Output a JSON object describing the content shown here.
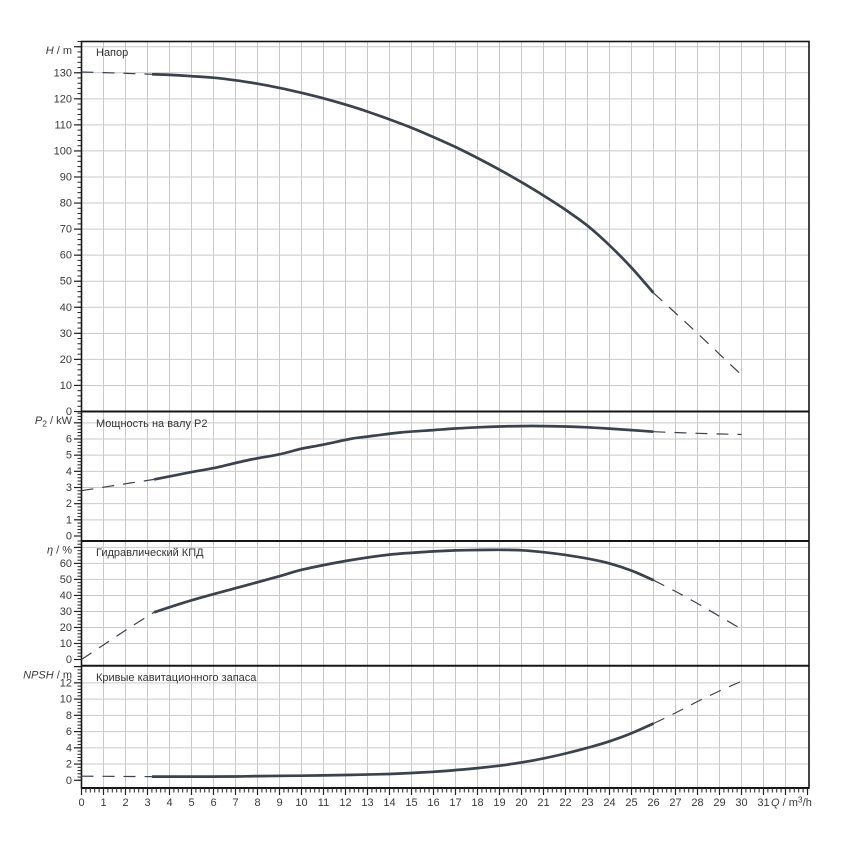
{
  "colors": {
    "curve": "#3a424d",
    "grid": "#c9c9c9",
    "frame": "#161616",
    "text": "#3a3a3a"
  },
  "x_axis": {
    "label": "Q / m³/h",
    "label_parts": [
      {
        "t": "Q",
        "i": 1
      },
      {
        "t": " / m"
      },
      {
        "t": "3",
        "sup": 1
      },
      {
        "t": "/h"
      }
    ],
    "tick_labels": [
      0,
      1,
      2,
      3,
      4,
      5,
      6,
      7,
      8,
      9,
      10,
      11,
      12,
      13,
      14,
      15,
      16,
      17,
      18,
      19,
      20,
      21,
      22,
      23,
      24,
      25,
      26,
      27,
      28,
      29,
      30,
      31
    ],
    "range": [
      0,
      33
    ],
    "major_step": 1,
    "minor_step": 0.2,
    "grid_step": 1
  },
  "chart_data": [
    {
      "type": "line",
      "id": "head",
      "title": "Напор",
      "ylabel": "H / m",
      "ylabel_parts": [
        {
          "t": "H",
          "i": 1
        },
        {
          "t": " / m"
        }
      ],
      "xlabel": "Q / m³/h",
      "ylim": [
        0,
        142
      ],
      "y_tick_labels": [
        0,
        10,
        20,
        30,
        40,
        50,
        60,
        70,
        80,
        90,
        100,
        110,
        120,
        130
      ],
      "y_label_step": 10,
      "y_major_step": 10,
      "y_minor_step": 2,
      "y_grid_step": 10,
      "grid": true,
      "series": [
        {
          "name": "H dashed lead-in",
          "style": "dashed",
          "points": [
            [
              0,
              130.3
            ],
            [
              1.6,
              129.9
            ],
            [
              3.2,
              129.4
            ]
          ]
        },
        {
          "name": "H main curve",
          "style": "solid",
          "points": [
            [
              3.2,
              129.4
            ],
            [
              4,
              129.2
            ],
            [
              5,
              128.7
            ],
            [
              6,
              128.1
            ],
            [
              7,
              127.1
            ],
            [
              8,
              125.8
            ],
            [
              9,
              124.2
            ],
            [
              10,
              122.3
            ],
            [
              11,
              120.2
            ],
            [
              12,
              117.8
            ],
            [
              13,
              115.1
            ],
            [
              14,
              112.1
            ],
            [
              15,
              108.9
            ],
            [
              16,
              105.3
            ],
            [
              17,
              101.5
            ],
            [
              18,
              97.3
            ],
            [
              19,
              92.8
            ],
            [
              20,
              88.0
            ],
            [
              21,
              82.9
            ],
            [
              22,
              77.4
            ],
            [
              23,
              71.3
            ],
            [
              24,
              63.8
            ],
            [
              25,
              55.2
            ],
            [
              26,
              45.5
            ]
          ]
        },
        {
          "name": "H dashed tail",
          "style": "dashed",
          "points": [
            [
              26,
              45.5
            ],
            [
              27,
              37.8
            ],
            [
              28,
              30.0
            ],
            [
              29,
              22.0
            ],
            [
              30,
              14.0
            ]
          ]
        }
      ]
    },
    {
      "type": "line",
      "id": "power",
      "title": "Мощность на валу P2",
      "ylabel": "P2 / kW",
      "ylabel_parts": [
        {
          "t": "P",
          "i": 1
        },
        {
          "t": "2",
          "sub": 1
        },
        {
          "t": " / kW"
        }
      ],
      "xlabel": "Q / m³/h",
      "ylim": [
        0,
        7.7
      ],
      "y_tick_labels": [
        0,
        1,
        2,
        3,
        4,
        5,
        6
      ],
      "y_label_step": 1,
      "y_major_step": 1,
      "y_minor_step": 0.2,
      "y_grid_step": 1,
      "grid": true,
      "series": [
        {
          "name": "P2 dashed lead-in",
          "style": "dashed",
          "points": [
            [
              0,
              2.8
            ],
            [
              1.6,
              3.15
            ],
            [
              3.3,
              3.5
            ]
          ]
        },
        {
          "name": "P2 main curve",
          "style": "solid",
          "points": [
            [
              3.3,
              3.5
            ],
            [
              5,
              3.95
            ],
            [
              6,
              4.2
            ],
            [
              7.6,
              4.7
            ],
            [
              9,
              5.05
            ],
            [
              10,
              5.4
            ],
            [
              11,
              5.65
            ],
            [
              12.2,
              6.0
            ],
            [
              13,
              6.15
            ],
            [
              14.5,
              6.4
            ],
            [
              16,
              6.55
            ],
            [
              17,
              6.65
            ],
            [
              18,
              6.72
            ],
            [
              19,
              6.77
            ],
            [
              20,
              6.8
            ],
            [
              21,
              6.8
            ],
            [
              22,
              6.77
            ],
            [
              23,
              6.72
            ],
            [
              24,
              6.64
            ],
            [
              25,
              6.55
            ],
            [
              26,
              6.45
            ]
          ]
        },
        {
          "name": "P2 dashed tail",
          "style": "dashed",
          "points": [
            [
              26,
              6.45
            ],
            [
              28,
              6.35
            ],
            [
              30,
              6.28
            ]
          ]
        }
      ]
    },
    {
      "type": "line",
      "id": "efficiency",
      "title": "Гидравлический КПД",
      "ylabel": "η / %",
      "ylabel_parts": [
        {
          "t": "η",
          "i": 1
        },
        {
          "t": " / %"
        }
      ],
      "xlabel": "Q / m³/h",
      "ylim": [
        0,
        74
      ],
      "y_tick_labels": [
        0,
        10,
        20,
        30,
        40,
        50,
        60
      ],
      "y_label_step": 10,
      "y_major_step": 10,
      "y_minor_step": 2,
      "y_grid_step": 10,
      "grid": true,
      "series": [
        {
          "name": "eta dashed lead-in",
          "style": "dashed",
          "points": [
            [
              0,
              0
            ],
            [
              1.1,
              10
            ],
            [
              2.2,
              20
            ],
            [
              3.3,
              29.5
            ]
          ]
        },
        {
          "name": "eta main curve",
          "style": "solid",
          "points": [
            [
              3.3,
              29.5
            ],
            [
              5,
              37
            ],
            [
              7,
              44.5
            ],
            [
              9,
              52
            ],
            [
              10,
              56
            ],
            [
              12,
              61.5
            ],
            [
              14,
              65.5
            ],
            [
              16,
              67.5
            ],
            [
              17,
              68.1
            ],
            [
              18,
              68.4
            ],
            [
              19,
              68.5
            ],
            [
              20,
              68.2
            ],
            [
              21,
              67
            ],
            [
              22,
              65.3
            ],
            [
              23,
              63
            ],
            [
              24,
              60
            ],
            [
              25,
              55.5
            ],
            [
              26,
              49.5
            ]
          ]
        },
        {
          "name": "eta dashed tail",
          "style": "dashed",
          "points": [
            [
              26,
              49.5
            ],
            [
              27,
              42.5
            ],
            [
              28,
              35
            ],
            [
              29,
              27
            ],
            [
              30,
              19
            ]
          ]
        }
      ]
    },
    {
      "type": "line",
      "id": "npsh",
      "title": "Кривые кавитационного запаса",
      "ylabel": "NPSH / m",
      "ylabel_parts": [
        {
          "t": "NPSH",
          "i": 1
        },
        {
          "t": " / m"
        }
      ],
      "xlabel": "Q / m³/h",
      "ylim": [
        0,
        14.1
      ],
      "y_tick_labels": [
        0,
        2,
        4,
        6,
        8,
        10,
        12
      ],
      "y_label_step": 2,
      "y_major_step": 2,
      "y_minor_step": 0.4,
      "y_grid_step": 2,
      "grid": true,
      "series": [
        {
          "name": "NPSH dashed lead-in",
          "style": "dashed",
          "points": [
            [
              0,
              0.5
            ],
            [
              1.6,
              0.48
            ],
            [
              3.2,
              0.45
            ]
          ]
        },
        {
          "name": "NPSH main curve",
          "style": "solid",
          "points": [
            [
              3.2,
              0.45
            ],
            [
              5,
              0.45
            ],
            [
              7,
              0.47
            ],
            [
              8,
              0.52
            ],
            [
              10,
              0.57
            ],
            [
              12,
              0.65
            ],
            [
              14,
              0.78
            ],
            [
              15,
              0.9
            ],
            [
              16,
              1.05
            ],
            [
              17,
              1.25
            ],
            [
              18,
              1.5
            ],
            [
              19,
              1.8
            ],
            [
              20,
              2.2
            ],
            [
              21,
              2.7
            ],
            [
              22,
              3.3
            ],
            [
              23,
              4.0
            ],
            [
              24,
              4.8
            ],
            [
              25,
              5.8
            ],
            [
              26,
              7.0
            ]
          ]
        },
        {
          "name": "NPSH dashed tail",
          "style": "dashed",
          "points": [
            [
              26,
              7.0
            ],
            [
              27,
              8.3
            ],
            [
              28,
              9.7
            ],
            [
              29,
              11.0
            ],
            [
              30,
              12.2
            ]
          ]
        }
      ]
    }
  ]
}
